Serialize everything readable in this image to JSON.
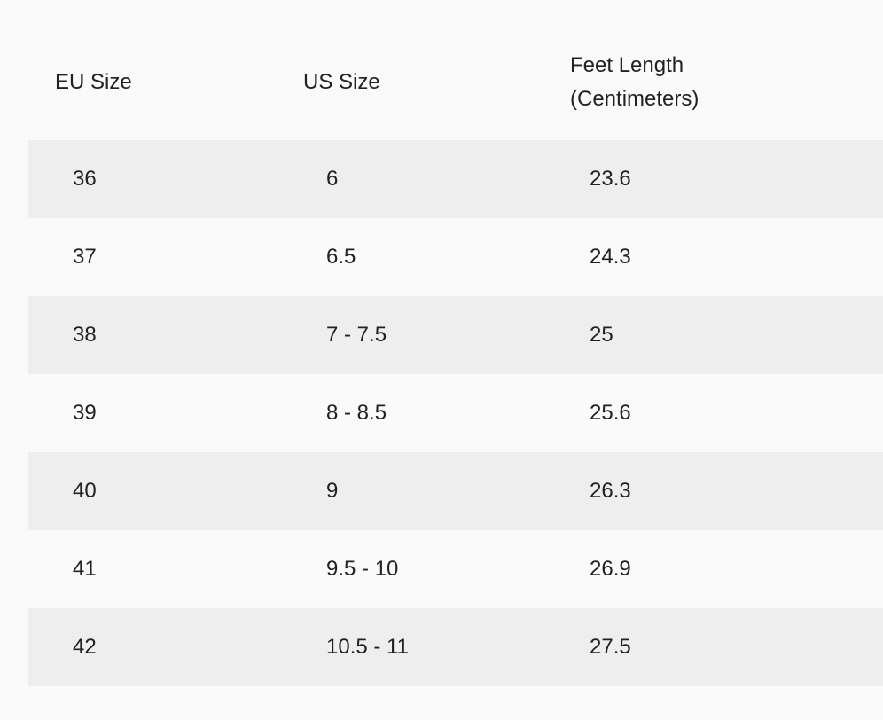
{
  "colors": {
    "background": "#fafafa",
    "stripe": "#eeeeee",
    "text": "#212121"
  },
  "table": {
    "columns": [
      "EU Size",
      "US Size",
      "Feet Length (Centimeters)"
    ],
    "rows": [
      [
        "36",
        "6",
        "23.6"
      ],
      [
        "37",
        "6.5",
        "24.3"
      ],
      [
        "38",
        "7 - 7.5",
        "25"
      ],
      [
        "39",
        "8 - 8.5",
        "25.6"
      ],
      [
        "40",
        "9",
        "26.3"
      ],
      [
        "41",
        "9.5 - 10",
        "26.9"
      ],
      [
        "42",
        "10.5 - 11",
        "27.5"
      ]
    ]
  }
}
